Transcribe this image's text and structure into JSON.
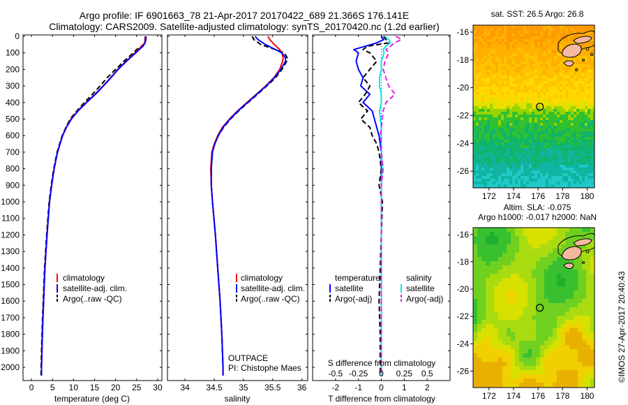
{
  "title": {
    "line1": "Argo profile: IF 6901663_78 21-Apr-2017 20170422_689 21.366S 176.141E",
    "line2": "Climatology: CARS2009. Satellite-adjusted climatology: synTS_20170420.nc (1.2d earlier)"
  },
  "colors": {
    "climatology": "#ff0000",
    "satellite": "#0000ff",
    "argo": "#000000",
    "sal_satellite": "#00e5ee",
    "sal_argo": "#e020e0"
  },
  "depth_axis": {
    "ticks": [
      0,
      100,
      200,
      300,
      400,
      500,
      600,
      700,
      800,
      900,
      1000,
      1100,
      1200,
      1300,
      1400,
      1500,
      1600,
      1700,
      1800,
      1900,
      2000
    ]
  },
  "chart_data": [
    {
      "type": "line",
      "id": "temperature",
      "xlabel": "temperature (deg C)",
      "ylabel": "",
      "xlim": [
        -2,
        31
      ],
      "ylim": [
        2080,
        0
      ],
      "xticks": [
        0,
        5,
        10,
        15,
        20,
        25,
        30
      ],
      "legend": {
        "position": "lower-right",
        "labels": [
          "climatology",
          "satellite-adj. clim.",
          "Argo(..raw -QC)"
        ]
      },
      "depth": [
        0,
        20,
        40,
        60,
        80,
        100,
        150,
        200,
        250,
        300,
        350,
        400,
        450,
        500,
        550,
        600,
        700,
        800,
        900,
        1000,
        1200,
        1400,
        1600,
        1800,
        2000,
        2050
      ],
      "series": [
        {
          "name": "climatology",
          "values": [
            27.0,
            27.0,
            26.9,
            26.2,
            25.4,
            24.6,
            22.5,
            20.5,
            18.8,
            17.0,
            15.1,
            13.0,
            11.0,
            9.4,
            8.3,
            7.4,
            6.2,
            5.4,
            4.8,
            4.3,
            3.7,
            3.2,
            2.9,
            2.6,
            2.4,
            2.4
          ]
        },
        {
          "name": "satellite-adj. clim.",
          "values": [
            27.1,
            27.1,
            27.0,
            26.5,
            25.6,
            24.8,
            22.6,
            20.6,
            18.9,
            17.1,
            15.2,
            13.1,
            11.1,
            9.5,
            8.3,
            7.4,
            6.2,
            5.4,
            4.8,
            4.3,
            3.7,
            3.2,
            2.9,
            2.6,
            2.4,
            2.4
          ]
        },
        {
          "name": "Argo(..raw -QC)",
          "values": [
            27.2,
            27.2,
            27.0,
            26.1,
            25.0,
            24.2,
            22.0,
            20.0,
            18.0,
            16.3,
            14.5,
            12.6,
            10.8,
            9.2,
            8.2,
            7.3,
            6.1,
            5.3,
            4.7,
            4.2,
            3.6,
            3.1,
            2.8,
            2.5,
            2.3,
            2.3
          ]
        }
      ]
    },
    {
      "type": "line",
      "id": "salinity",
      "xlabel": "salinity",
      "ylabel": "",
      "xlim": [
        33.7,
        36.1
      ],
      "ylim": [
        2080,
        0
      ],
      "xticks": [
        34,
        34.5,
        35,
        35.5,
        36
      ],
      "legend": {
        "position": "lower-right",
        "labels": [
          "climatology",
          "satellite-adj. clim.",
          "Argo(..raw -QC)"
        ]
      },
      "annotation": {
        "project": "OUTPACE",
        "pi": "PI: Chistophe Maes"
      },
      "depth": [
        0,
        20,
        50,
        80,
        100,
        130,
        150,
        200,
        250,
        300,
        350,
        400,
        450,
        500,
        550,
        600,
        650,
        700,
        800,
        900,
        1000,
        1200,
        1400,
        1600,
        1800,
        2000,
        2050
      ],
      "series": [
        {
          "name": "climatology",
          "values": [
            35.42,
            35.45,
            35.53,
            35.62,
            35.66,
            35.68,
            35.67,
            35.62,
            35.52,
            35.38,
            35.22,
            35.06,
            34.9,
            34.76,
            34.64,
            34.56,
            34.5,
            34.46,
            34.44,
            34.45,
            34.47,
            34.52,
            34.56,
            34.6,
            34.63,
            34.65,
            34.65
          ]
        },
        {
          "name": "satellite-adj. clim.",
          "values": [
            35.2,
            35.25,
            35.38,
            35.55,
            35.66,
            35.72,
            35.72,
            35.64,
            35.53,
            35.39,
            35.23,
            35.07,
            34.91,
            34.77,
            34.65,
            34.57,
            34.51,
            34.47,
            34.45,
            34.45,
            34.47,
            34.52,
            34.56,
            34.6,
            34.63,
            34.65,
            34.65
          ]
        },
        {
          "name": "Argo(..raw -QC)",
          "values": [
            35.15,
            35.18,
            35.3,
            35.55,
            35.7,
            35.75,
            35.74,
            35.66,
            35.55,
            35.4,
            35.24,
            35.08,
            34.92,
            34.78,
            34.66,
            34.57,
            34.51,
            34.47,
            34.45,
            34.45,
            34.47,
            34.52,
            34.56,
            34.6,
            34.63,
            34.65,
            34.65
          ]
        }
      ]
    },
    {
      "type": "line",
      "id": "differences",
      "xlabel": "T difference from climatology",
      "x2label": "S difference from climatology",
      "xlim": [
        -3,
        3
      ],
      "x2lim": [
        -0.75,
        0.75
      ],
      "ylim": [
        2080,
        0
      ],
      "xticks": [
        -2,
        -1,
        0,
        1,
        2
      ],
      "x2ticks": [
        "-0.5",
        "-0.25",
        "0",
        "0.25",
        "0.5"
      ],
      "legend": {
        "position": "lower-center",
        "temperature_header": "temperature",
        "salinity_header": "salinity",
        "labels": [
          "satellite",
          "Argo(-adj)"
        ]
      },
      "depth": [
        0,
        20,
        40,
        60,
        80,
        100,
        150,
        200,
        250,
        300,
        350,
        400,
        450,
        500,
        550,
        600,
        650,
        700,
        800,
        900,
        1000,
        1200,
        1400,
        1600,
        1800,
        2000,
        2050
      ],
      "series": [
        {
          "name": "temperature satellite",
          "group": "temperature",
          "values": [
            0.0,
            0.1,
            -0.2,
            -0.7,
            -1.2,
            -1.0,
            -1.1,
            -1.0,
            -0.8,
            -0.9,
            -0.5,
            -0.8,
            -0.4,
            -0.3,
            -0.2,
            -0.1,
            -0.05,
            0.0,
            0.0,
            0.0,
            0.0,
            0.0,
            0.0,
            0.0,
            0.0,
            0.0,
            0.0
          ]
        },
        {
          "name": "temperature Argo(-adj)",
          "group": "temperature",
          "values": [
            0.1,
            0.2,
            0.3,
            -0.6,
            -0.8,
            -0.5,
            -0.2,
            -0.5,
            -0.8,
            -0.5,
            -0.7,
            -1.0,
            -0.6,
            -0.9,
            -0.5,
            -0.4,
            -0.2,
            -0.1,
            0.0,
            -0.1,
            0.05,
            0.0,
            -0.05,
            -0.1,
            -0.05,
            -0.05,
            -0.05
          ]
        },
        {
          "name": "salinity satellite",
          "group": "salinity",
          "values": [
            0.04,
            0.08,
            0.1,
            0.05,
            0.02,
            0.03,
            0.0,
            0.0,
            -0.02,
            -0.02,
            0.0,
            0.0,
            -0.02,
            -0.01,
            0.0,
            0.0,
            0.0,
            0.0,
            0.01,
            0.0,
            0.0,
            0.0,
            0.0,
            0.0,
            0.0,
            0.0,
            0.0
          ]
        },
        {
          "name": "salinity Argo(-adj)",
          "group": "salinity",
          "values": [
            0.16,
            0.22,
            0.14,
            0.1,
            0.05,
            0.08,
            0.04,
            0.02,
            0.05,
            0.08,
            0.15,
            0.05,
            0.02,
            0.01,
            0.0,
            -0.01,
            0.0,
            0.0,
            0.02,
            0.0,
            0.0,
            0.0,
            0.0,
            0.0,
            0.0,
            0.0,
            0.0
          ]
        }
      ]
    },
    {
      "type": "heatmap",
      "id": "sst_map",
      "title": "sat. SST: 26.5  Argo: 26.8",
      "xlim": [
        170.7,
        180.6
      ],
      "ylim": [
        -27.2,
        -15.5
      ],
      "xticks": [
        172,
        174,
        176,
        178,
        180
      ],
      "yticks": [
        -16,
        -18,
        -20,
        -22,
        -24,
        -26
      ],
      "argo_location": {
        "lon": 176.141,
        "lat": -21.366
      },
      "colormap": [
        "#ff9a00",
        "#ffb000",
        "#ffc400",
        "#ffd800",
        "#e6e000",
        "#99d400",
        "#30c030",
        "#10b46a",
        "#10b4a0",
        "#20c8c8"
      ]
    },
    {
      "type": "heatmap",
      "id": "sla_map",
      "title": "Altim. SLA: -0.075",
      "subtitle": "Argo h1000: -0.017 h2000: NaN",
      "xlim": [
        170.7,
        180.6
      ],
      "ylim": [
        -27.2,
        -15.5
      ],
      "xticks": [
        172,
        174,
        176,
        178,
        180
      ],
      "yticks": [
        -16,
        -18,
        -20,
        -22,
        -24,
        -26
      ],
      "argo_location": {
        "lon": 176.141,
        "lat": -21.366
      }
    }
  ],
  "footer": {
    "stamp": "©IMOS 27-Apr-2017 20:40:43"
  }
}
